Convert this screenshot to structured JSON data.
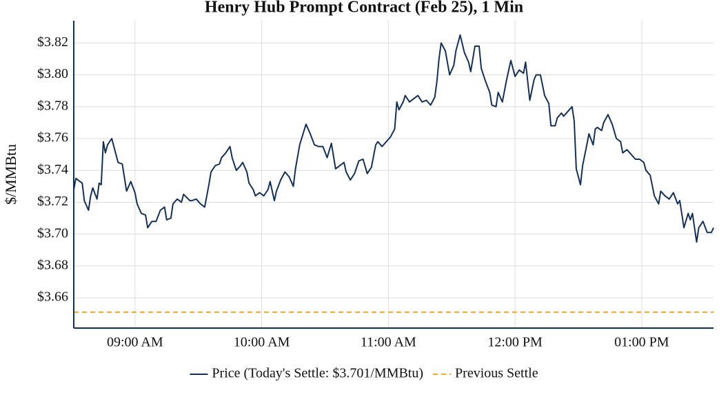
{
  "chart_data": {
    "type": "line",
    "title": "Henry Hub Prompt Contract (Feb 25), 1 Min",
    "y_label": "$/MMBtu",
    "x": [
      "08:31",
      "08:32",
      "08:34",
      "08:35",
      "08:36",
      "08:38",
      "08:39",
      "08:40",
      "08:42",
      "08:43",
      "08:44",
      "08:45",
      "08:46",
      "08:47",
      "08:49",
      "08:50",
      "08:52",
      "08:54",
      "08:56",
      "08:58",
      "09:00",
      "09:01",
      "09:03",
      "09:05",
      "09:06",
      "09:08",
      "09:10",
      "09:12",
      "09:14",
      "09:15",
      "09:17",
      "09:18",
      "09:20",
      "09:22",
      "09:23",
      "09:26",
      "09:27",
      "09:29",
      "09:31",
      "09:33",
      "09:35",
      "09:36",
      "09:38",
      "09:40",
      "09:41",
      "09:43",
      "09:45",
      "09:46",
      "09:48",
      "09:50",
      "09:51",
      "09:53",
      "09:54",
      "09:56",
      "09:57",
      "09:59",
      "10:01",
      "10:03",
      "10:04",
      "10:06",
      "10:07",
      "10:09",
      "10:11",
      "10:13",
      "10:15",
      "10:16",
      "10:18",
      "10:21",
      "10:23",
      "10:25",
      "10:27",
      "10:29",
      "10:31",
      "10:33",
      "10:35",
      "10:37",
      "10:39",
      "10:40",
      "10:42",
      "10:44",
      "10:46",
      "10:48",
      "10:50",
      "10:52",
      "10:54",
      "10:55",
      "10:57",
      "10:59",
      "11:01",
      "11:03",
      "11:04",
      "11:05",
      "11:07",
      "11:08",
      "11:10",
      "11:12",
      "11:14",
      "11:16",
      "11:18",
      "11:20",
      "11:22",
      "11:23",
      "11:24",
      "11:25",
      "11:27",
      "11:29",
      "11:31",
      "11:32",
      "11:34",
      "11:36",
      "11:38",
      "11:39",
      "11:41",
      "11:43",
      "11:44",
      "11:46",
      "11:48",
      "11:49",
      "11:51",
      "11:52",
      "11:54",
      "11:56",
      "11:58",
      "12:00",
      "12:02",
      "12:04",
      "12:05",
      "12:07",
      "12:09",
      "12:10",
      "12:12",
      "12:14",
      "12:16",
      "12:17",
      "12:19",
      "12:20",
      "12:22",
      "12:23",
      "12:25",
      "12:27",
      "12:28",
      "12:29",
      "12:31",
      "12:32",
      "12:34",
      "12:35",
      "12:37",
      "12:38",
      "12:39",
      "12:41",
      "12:42",
      "12:44",
      "12:46",
      "12:48",
      "12:50",
      "12:51",
      "12:53",
      "12:55",
      "12:57",
      "12:59",
      "13:01",
      "13:02",
      "13:04",
      "13:06",
      "13:08",
      "13:09",
      "13:11",
      "13:13",
      "13:15",
      "13:17",
      "13:18",
      "13:20",
      "13:22",
      "13:23",
      "13:24",
      "13:26",
      "13:27",
      "13:29",
      "13:31",
      "13:33",
      "13:34"
    ],
    "series": [
      {
        "name": "Price (Today's Settle: $3.701/MMBtu)",
        "color": "#142f55",
        "values": [
          3.728,
          3.735,
          3.733,
          3.732,
          3.721,
          3.715,
          3.724,
          3.729,
          3.722,
          3.732,
          3.731,
          3.758,
          3.751,
          3.756,
          3.76,
          3.755,
          3.745,
          3.744,
          3.727,
          3.733,
          3.726,
          3.719,
          3.713,
          3.712,
          3.704,
          3.708,
          3.708,
          3.715,
          3.717,
          3.709,
          3.71,
          3.719,
          3.722,
          3.72,
          3.725,
          3.721,
          3.721,
          3.722,
          3.719,
          3.717,
          3.731,
          3.739,
          3.743,
          3.744,
          3.748,
          3.751,
          3.755,
          3.748,
          3.74,
          3.743,
          3.745,
          3.739,
          3.732,
          3.728,
          3.724,
          3.726,
          3.724,
          3.728,
          3.733,
          3.721,
          3.727,
          3.734,
          3.739,
          3.736,
          3.73,
          3.741,
          3.756,
          3.769,
          3.763,
          3.756,
          3.755,
          3.755,
          3.748,
          3.757,
          3.741,
          3.743,
          3.745,
          3.739,
          3.734,
          3.738,
          3.746,
          3.747,
          3.738,
          3.742,
          3.756,
          3.758,
          3.755,
          3.758,
          3.761,
          3.766,
          3.783,
          3.778,
          3.783,
          3.787,
          3.783,
          3.785,
          3.787,
          3.783,
          3.784,
          3.781,
          3.786,
          3.796,
          3.81,
          3.82,
          3.815,
          3.8,
          3.806,
          3.815,
          3.825,
          3.814,
          3.808,
          3.802,
          3.818,
          3.818,
          3.804,
          3.796,
          3.789,
          3.781,
          3.78,
          3.789,
          3.783,
          3.797,
          3.809,
          3.799,
          3.803,
          3.801,
          3.808,
          3.784,
          3.797,
          3.8,
          3.8,
          3.787,
          3.782,
          3.768,
          3.768,
          3.773,
          3.776,
          3.774,
          3.777,
          3.78,
          3.771,
          3.741,
          3.731,
          3.743,
          3.756,
          3.763,
          3.756,
          3.766,
          3.767,
          3.765,
          3.77,
          3.775,
          3.769,
          3.76,
          3.758,
          3.751,
          3.753,
          3.75,
          3.747,
          3.747,
          3.745,
          3.74,
          3.737,
          3.724,
          3.719,
          3.727,
          3.724,
          3.722,
          3.726,
          3.719,
          3.721,
          3.704,
          3.713,
          3.709,
          3.713,
          3.695,
          3.704,
          3.708,
          3.701,
          3.701,
          3.704
        ]
      }
    ],
    "reference_lines": [
      {
        "name": "Previous Settle",
        "value": 3.651,
        "color": "#f5a623"
      }
    ],
    "xlim": [
      "08:31",
      "13:34"
    ],
    "xticks": [
      {
        "value": "09:00",
        "label": "09:00 AM"
      },
      {
        "value": "10:00",
        "label": "10:00 AM"
      },
      {
        "value": "11:00",
        "label": "11:00 AM"
      },
      {
        "value": "12:00",
        "label": "12:00 PM"
      },
      {
        "value": "13:00",
        "label": "01:00 PM"
      }
    ],
    "ylim": [
      3.641,
      3.834
    ],
    "yticks": [
      {
        "value": 3.66,
        "label": "$3.66"
      },
      {
        "value": 3.68,
        "label": "$3.68"
      },
      {
        "value": 3.7,
        "label": "$3.70"
      },
      {
        "value": 3.72,
        "label": "$3.72"
      },
      {
        "value": 3.74,
        "label": "$3.74"
      },
      {
        "value": 3.76,
        "label": "$3.76"
      },
      {
        "value": 3.78,
        "label": "$3.78"
      },
      {
        "value": 3.8,
        "label": "$3.80"
      },
      {
        "value": 3.82,
        "label": "$3.82"
      }
    ],
    "grid": true
  }
}
